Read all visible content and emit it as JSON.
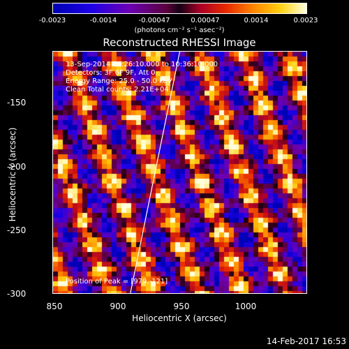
{
  "colorbar": {
    "ticks": [
      "-0.0023",
      "-0.0014",
      "-0.00047",
      "0.00047",
      "0.0014",
      "0.0023"
    ],
    "units": "(photons cm⁻² s⁻¹ asec⁻²)"
  },
  "info": {
    "time_range": "13-Sep-2014 10:26:10.000 to 10:36:10.000",
    "detectors": "Detectors: 3F 6F 9F, Att 0",
    "energy": "Energy Range: 25.0 - 50.0 keV",
    "clean": "Clean    Total counts: 2.21E+04",
    "peak": "Position of Peak = [979,-121]"
  },
  "timestamp": "14-Feb-2017 16:53",
  "chart_data": {
    "type": "heatmap",
    "title": "Reconstructed RHESSI Image",
    "xlabel": "Heliocentric X (arcsec)",
    "ylabel": "Heliocentric Y (arcsec)",
    "xlim": [
      850,
      1040
    ],
    "ylim": [
      -300,
      -118
    ],
    "x_ticks": [
      "850",
      "900",
      "950",
      "1000"
    ],
    "y_ticks": [
      "-150",
      "-200",
      "-250",
      "-300"
    ],
    "colorscale_range": [
      -0.0023,
      0.0023
    ],
    "limb_line": {
      "x": [
        908,
        945
      ],
      "y": [
        -300,
        -118
      ]
    },
    "peak": {
      "x": 979,
      "y": -121
    }
  }
}
